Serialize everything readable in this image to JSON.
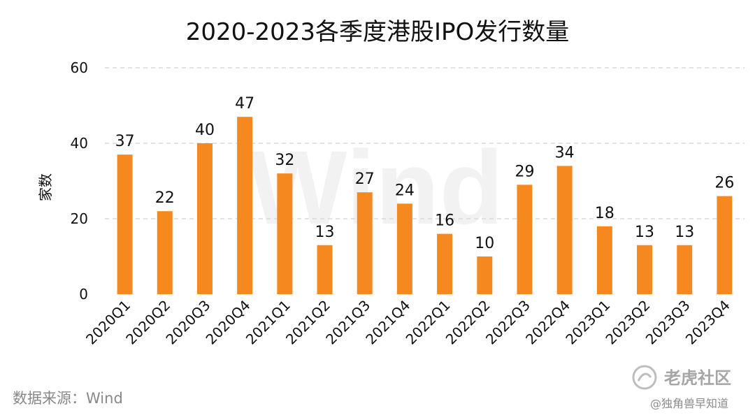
{
  "chart_data": {
    "type": "bar",
    "title": "2020-2023各季度港股IPO发行数量",
    "xlabel": "",
    "ylabel": "家数",
    "ylim": [
      0,
      60
    ],
    "yticks": [
      0,
      20,
      40,
      60
    ],
    "grid": true,
    "categories": [
      "2020Q1",
      "2020Q2",
      "2020Q3",
      "2020Q4",
      "2021Q1",
      "2021Q2",
      "2021Q3",
      "2021Q4",
      "2022Q1",
      "2022Q2",
      "2022Q3",
      "2022Q4",
      "2023Q1",
      "2023Q2",
      "2023Q3",
      "2023Q4"
    ],
    "values": [
      37,
      22,
      40,
      47,
      32,
      13,
      27,
      24,
      16,
      10,
      29,
      34,
      18,
      13,
      13,
      26
    ],
    "bar_color": "#f5891f",
    "grid_color": "#d9d9d9"
  },
  "watermark": "Wind",
  "source": "数据来源：Wind",
  "branding": {
    "name": "老虎社区",
    "icon": "tiger-community-logo-icon",
    "credit": "@独角兽早知道"
  }
}
